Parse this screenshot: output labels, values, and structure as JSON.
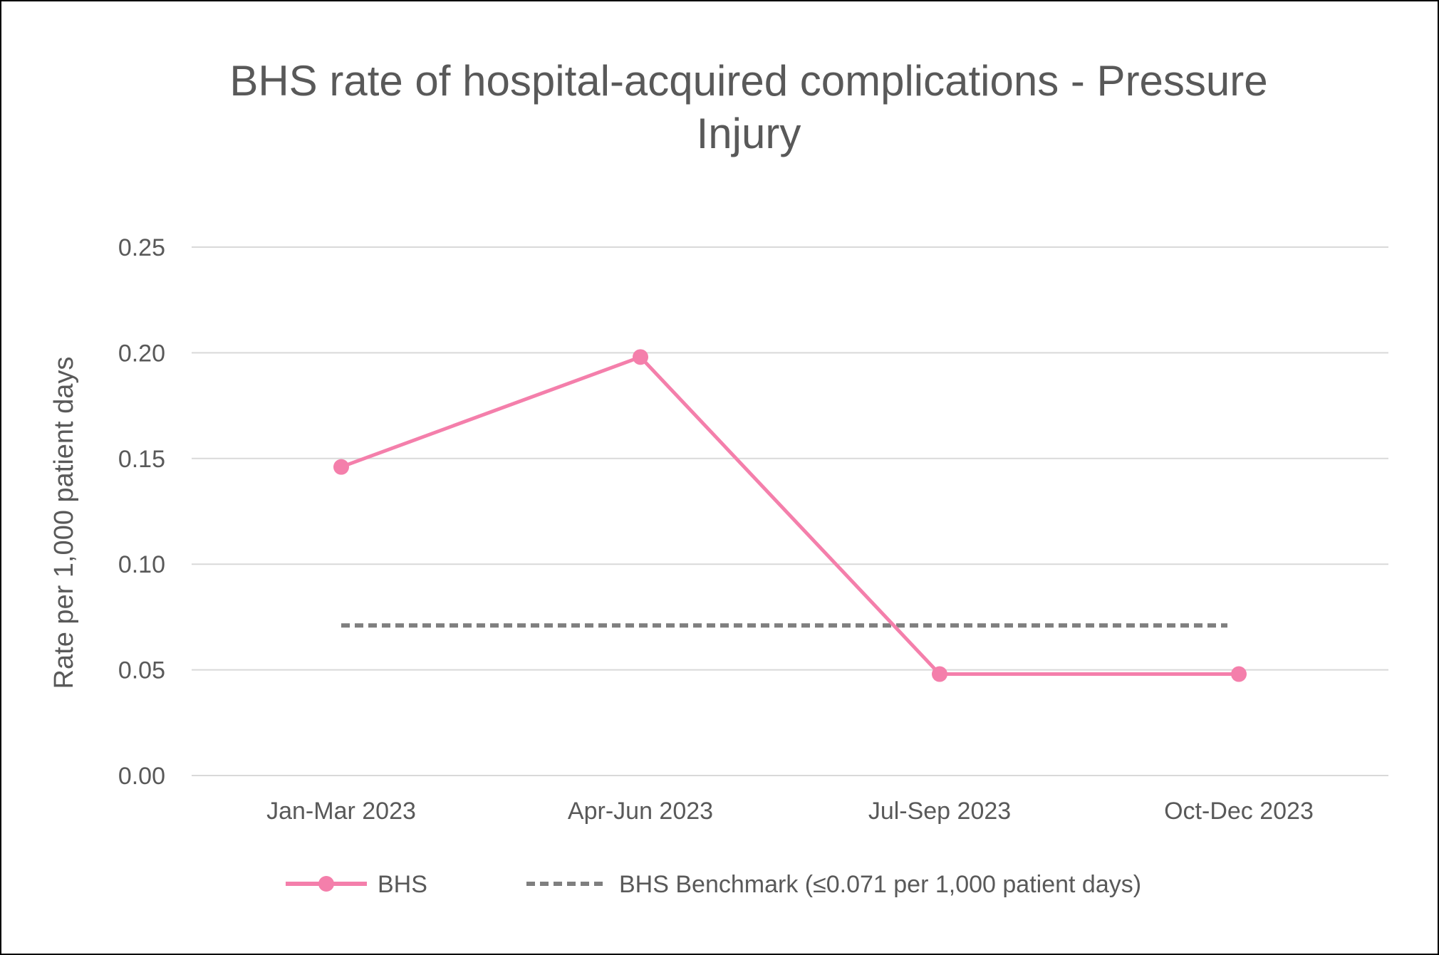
{
  "chart_data": {
    "type": "line",
    "title": "BHS rate of hospital-acquired complications - Pressure Injury",
    "title_lines": [
      "BHS rate of hospital-acquired complications - Pressure",
      "Injury"
    ],
    "xlabel": "",
    "ylabel": "Rate per 1,000 patient days",
    "categories": [
      "Jan-Mar 2023",
      "Apr-Jun 2023",
      "Jul-Sep 2023",
      "Oct-Dec 2023"
    ],
    "ylim": [
      0,
      0.25
    ],
    "yticks": [
      "0.00",
      "0.05",
      "0.10",
      "0.15",
      "0.20",
      "0.25"
    ],
    "grid": true,
    "legend_position": "bottom",
    "series": [
      {
        "name": "BHS",
        "values": [
          0.146,
          0.198,
          0.048,
          0.048
        ],
        "color": "#F47FAB",
        "style": "solid",
        "marker": "circle"
      },
      {
        "name": "BHS Benchmark (≤0.071 per 1,000 patient days)",
        "values": [
          0.071,
          0.071,
          0.071,
          0.071
        ],
        "color": "#7F7F7F",
        "style": "dashed",
        "marker": "none"
      }
    ]
  }
}
